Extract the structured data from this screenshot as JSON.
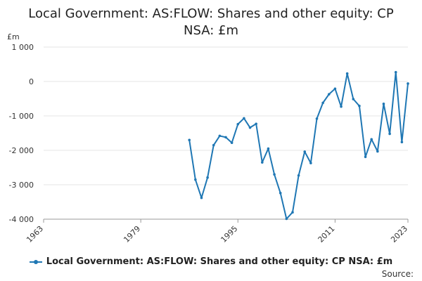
{
  "title_line1": "Local Government: AS:FLOW: Shares and other equity: CP",
  "title_line2": "NSA: £m",
  "source_label": "Source:",
  "colors": {
    "series": "#1f77b4",
    "grid": "#e6e6e6",
    "axis": "#999999"
  },
  "chart_data": {
    "type": "line",
    "title": "Local Government: AS:FLOW: Shares and other equity: CP NSA: £m",
    "unit_label": "£m",
    "xlabel": "",
    "ylabel": "£m",
    "xlim": [
      1963,
      2023
    ],
    "ylim": [
      -4000,
      1000
    ],
    "x_ticks": [
      1963,
      1979,
      1995,
      2011,
      2023
    ],
    "y_ticks": [
      1000,
      0,
      -1000,
      -2000,
      -3000,
      -4000
    ],
    "y_tick_labels": [
      "1 000",
      "0",
      "-1 000",
      "-2 000",
      "-3 000",
      "-4 000"
    ],
    "grid": "horizontal",
    "legend_position": "bottom",
    "series": [
      {
        "name": "Local Government: AS:FLOW: Shares and other equity: CP NSA: £m",
        "x": [
          1987,
          1988,
          1989,
          1990,
          1991,
          1992,
          1993,
          1994,
          1995,
          1996,
          1997,
          1998,
          1999,
          2000,
          2001,
          2002,
          2003,
          2004,
          2005,
          2006,
          2007,
          2008,
          2009,
          2010,
          2011,
          2012,
          2013,
          2014,
          2015,
          2016,
          2017,
          2018,
          2019,
          2020,
          2021,
          2022,
          2023
        ],
        "values": [
          -1700,
          -2850,
          -3380,
          -2790,
          -1850,
          -1580,
          -1620,
          -1780,
          -1240,
          -1070,
          -1340,
          -1230,
          -2350,
          -1950,
          -2700,
          -3240,
          -3990,
          -3800,
          -2730,
          -2040,
          -2370,
          -1080,
          -620,
          -370,
          -210,
          -730,
          230,
          -510,
          -710,
          -2190,
          -1680,
          -2030,
          -650,
          -1520,
          270,
          -1760,
          -60
        ]
      }
    ]
  }
}
